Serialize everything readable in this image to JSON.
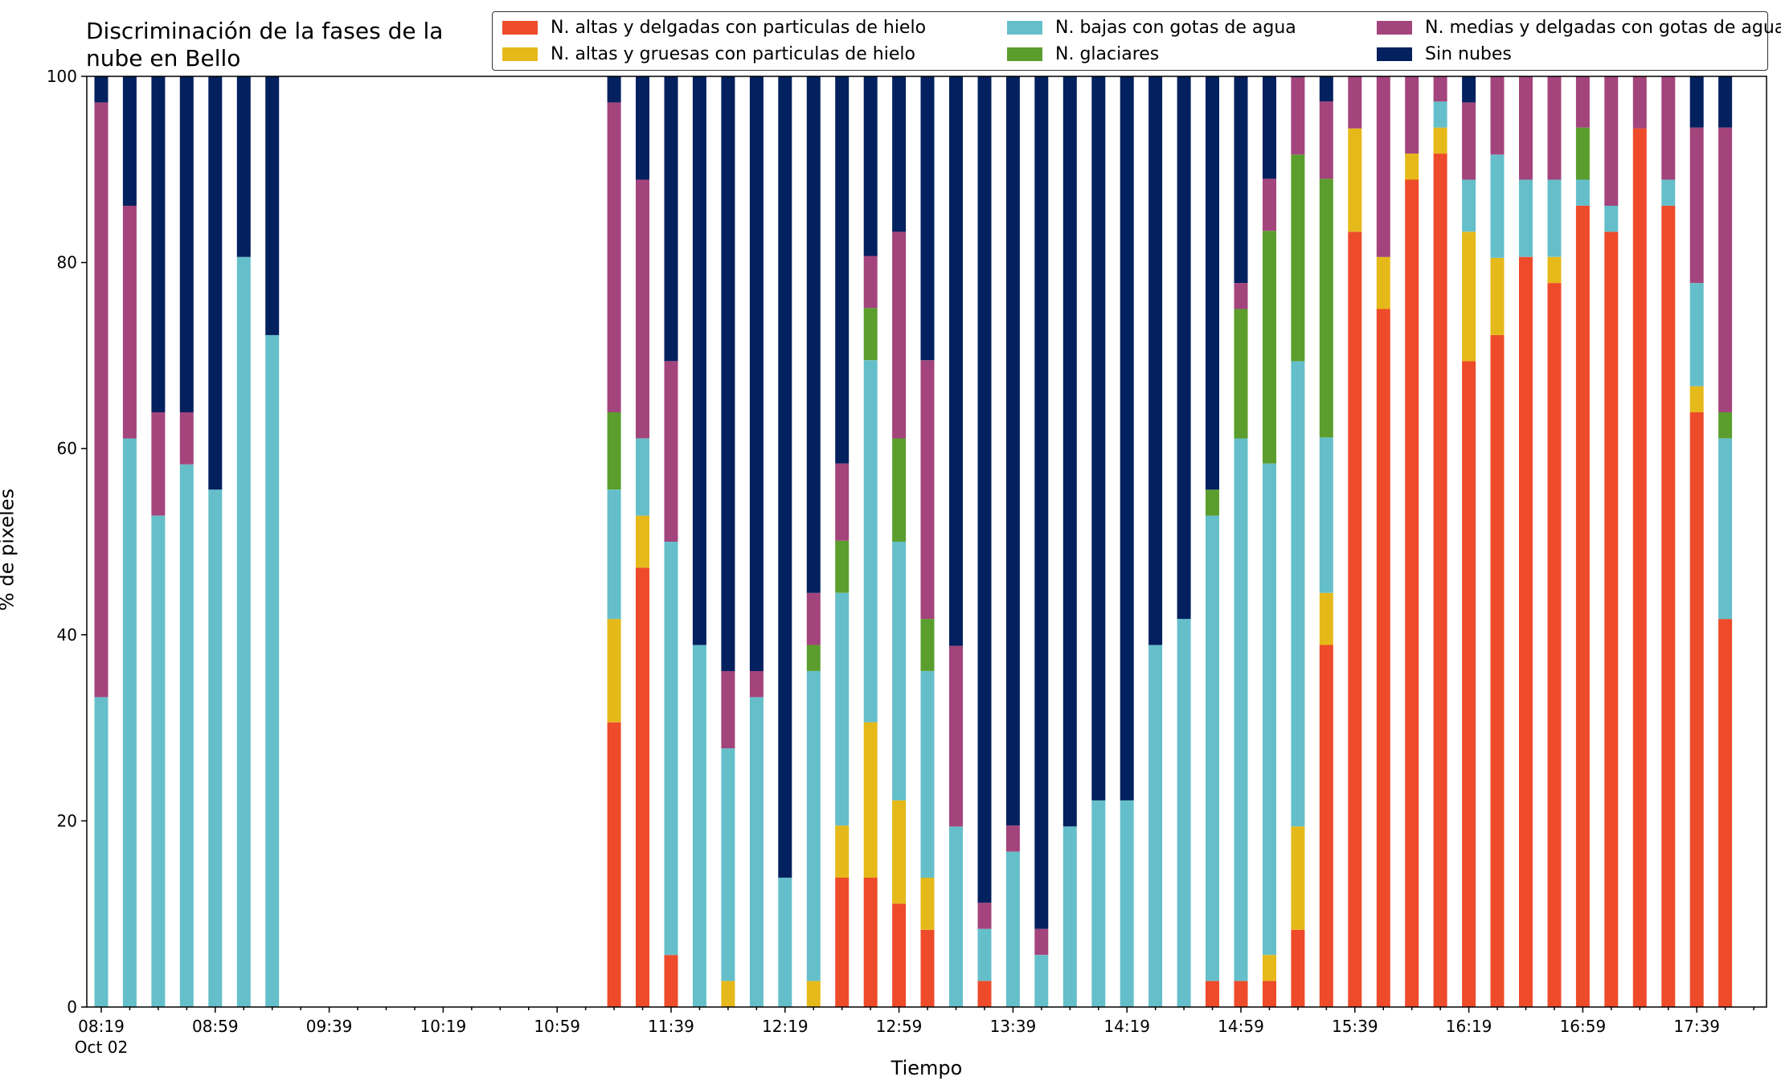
{
  "chart_data": {
    "type": "bar",
    "stacked": true,
    "title": "Discriminación de la fases de la\nnube en Bello",
    "xlabel": "Tiempo",
    "ylabel": "% de pixeles",
    "ylim": [
      0,
      100
    ],
    "yticks": [
      "0",
      "20",
      "40",
      "60",
      "80",
      "100"
    ],
    "xtick_labels": [
      {
        "label": "08:19",
        "sub": "Oct 02",
        "minute": 0
      },
      {
        "label": "08:59",
        "minute": 40
      },
      {
        "label": "09:39",
        "minute": 80
      },
      {
        "label": "10:19",
        "minute": 120
      },
      {
        "label": "10:59",
        "minute": 160
      },
      {
        "label": "11:39",
        "minute": 200
      },
      {
        "label": "12:19",
        "minute": 240
      },
      {
        "label": "12:59",
        "minute": 280
      },
      {
        "label": "13:39",
        "minute": 320
      },
      {
        "label": "14:19",
        "minute": 360
      },
      {
        "label": "14:59",
        "minute": 400
      },
      {
        "label": "15:39",
        "minute": 440
      },
      {
        "label": "16:19",
        "minute": 480
      },
      {
        "label": "16:59",
        "minute": 520
      },
      {
        "label": "17:39",
        "minute": 560
      }
    ],
    "x_interval_minutes": 10,
    "legend_location": "top-right",
    "series": [
      {
        "name": "N. altas y delgadas con particulas de hielo",
        "color": "#ee4b2b"
      },
      {
        "name": "N. altas y gruesas con particulas de hielo",
        "color": "#e6b91a"
      },
      {
        "name": "N. bajas con gotas de agua",
        "color": "#65bfca"
      },
      {
        "name": "N. glaciares",
        "color": "#5b9e2e"
      },
      {
        "name": "N. medias y delgadas con gotas de agua",
        "color": "#a4447c"
      },
      {
        "name": "Sin nubes",
        "color": "#03205f"
      }
    ],
    "bars": [
      {
        "minute": 0,
        "values": [
          0,
          0,
          33.3,
          0,
          63.9,
          2.8
        ]
      },
      {
        "minute": 10,
        "values": [
          0,
          0,
          61.1,
          0,
          25.0,
          13.9
        ]
      },
      {
        "minute": 20,
        "values": [
          0,
          0,
          52.8,
          0,
          11.1,
          36.1
        ]
      },
      {
        "minute": 30,
        "values": [
          0,
          0,
          58.3,
          0,
          5.6,
          36.1
        ]
      },
      {
        "minute": 40,
        "values": [
          0,
          0,
          55.6,
          0,
          0,
          44.4
        ]
      },
      {
        "minute": 50,
        "values": [
          0,
          0,
          80.6,
          0,
          0,
          19.4
        ]
      },
      {
        "minute": 60,
        "values": [
          0,
          0,
          72.2,
          0,
          0,
          27.8
        ]
      },
      {
        "minute": 180,
        "values": [
          30.6,
          11.1,
          13.9,
          8.3,
          33.3,
          2.8
        ]
      },
      {
        "minute": 190,
        "values": [
          47.2,
          5.6,
          8.3,
          0,
          27.8,
          11.1
        ]
      },
      {
        "minute": 200,
        "values": [
          5.6,
          0,
          44.4,
          0,
          19.4,
          30.6
        ]
      },
      {
        "minute": 210,
        "values": [
          0,
          0,
          38.9,
          0,
          0,
          61.1
        ]
      },
      {
        "minute": 220,
        "values": [
          0,
          2.8,
          25.0,
          0,
          8.3,
          63.9
        ]
      },
      {
        "minute": 230,
        "values": [
          0,
          0,
          33.3,
          0,
          2.8,
          63.9
        ]
      },
      {
        "minute": 240,
        "values": [
          0,
          0,
          13.9,
          0,
          0,
          86.1
        ]
      },
      {
        "minute": 250,
        "values": [
          0,
          2.8,
          33.3,
          2.8,
          5.6,
          55.5
        ]
      },
      {
        "minute": 260,
        "values": [
          13.9,
          5.6,
          25.0,
          5.6,
          8.3,
          41.6
        ]
      },
      {
        "minute": 270,
        "values": [
          13.9,
          16.7,
          38.9,
          5.6,
          5.6,
          19.3
        ]
      },
      {
        "minute": 280,
        "values": [
          11.1,
          11.1,
          27.8,
          11.1,
          22.2,
          16.7
        ]
      },
      {
        "minute": 290,
        "values": [
          8.3,
          5.6,
          22.2,
          5.6,
          27.8,
          30.5
        ]
      },
      {
        "minute": 300,
        "values": [
          0,
          0,
          19.4,
          0,
          19.4,
          61.2
        ]
      },
      {
        "minute": 310,
        "values": [
          2.8,
          0,
          5.6,
          0,
          2.8,
          88.8
        ]
      },
      {
        "minute": 320,
        "values": [
          0,
          0,
          16.7,
          0,
          2.8,
          80.5
        ]
      },
      {
        "minute": 330,
        "values": [
          0,
          0,
          5.6,
          0,
          2.8,
          91.6
        ]
      },
      {
        "minute": 340,
        "values": [
          0,
          0,
          19.4,
          0,
          0,
          80.6
        ]
      },
      {
        "minute": 350,
        "values": [
          0,
          0,
          22.2,
          0,
          0,
          77.8
        ]
      },
      {
        "minute": 360,
        "values": [
          0,
          0,
          22.2,
          0,
          0,
          77.8
        ]
      },
      {
        "minute": 370,
        "values": [
          0,
          0,
          38.9,
          0,
          0,
          61.1
        ]
      },
      {
        "minute": 380,
        "values": [
          0,
          0,
          41.7,
          0,
          0,
          58.3
        ]
      },
      {
        "minute": 390,
        "values": [
          2.8,
          0,
          50.0,
          2.8,
          0,
          44.4
        ]
      },
      {
        "minute": 400,
        "values": [
          2.8,
          0,
          58.3,
          13.9,
          2.8,
          22.2
        ]
      },
      {
        "minute": 410,
        "values": [
          2.8,
          2.8,
          52.8,
          25.0,
          5.6,
          11.0
        ]
      },
      {
        "minute": 420,
        "values": [
          8.3,
          11.1,
          50.0,
          22.2,
          8.3,
          0.1
        ]
      },
      {
        "minute": 430,
        "values": [
          38.9,
          5.6,
          16.7,
          27.8,
          8.3,
          2.7
        ]
      },
      {
        "minute": 440,
        "values": [
          83.3,
          11.1,
          0,
          0,
          5.6,
          0
        ]
      },
      {
        "minute": 450,
        "values": [
          75.0,
          5.6,
          0,
          0,
          19.4,
          0
        ]
      },
      {
        "minute": 460,
        "values": [
          88.9,
          2.8,
          0,
          0,
          8.3,
          0
        ]
      },
      {
        "minute": 470,
        "values": [
          91.7,
          2.8,
          2.8,
          0,
          2.7,
          0
        ]
      },
      {
        "minute": 480,
        "values": [
          69.4,
          13.9,
          5.6,
          0,
          8.3,
          2.8
        ]
      },
      {
        "minute": 490,
        "values": [
          72.2,
          8.3,
          11.1,
          0,
          8.4,
          0
        ]
      },
      {
        "minute": 500,
        "values": [
          80.6,
          0,
          8.3,
          0,
          11.1,
          0
        ]
      },
      {
        "minute": 510,
        "values": [
          77.8,
          2.8,
          8.3,
          0,
          11.1,
          0
        ]
      },
      {
        "minute": 520,
        "values": [
          86.1,
          0,
          2.8,
          5.6,
          5.5,
          0
        ]
      },
      {
        "minute": 530,
        "values": [
          83.3,
          0,
          2.8,
          0,
          13.9,
          0
        ]
      },
      {
        "minute": 540,
        "values": [
          94.4,
          0,
          0,
          0,
          5.6,
          0
        ]
      },
      {
        "minute": 550,
        "values": [
          86.1,
          0,
          2.8,
          0,
          11.1,
          0
        ]
      },
      {
        "minute": 560,
        "values": [
          63.9,
          2.8,
          11.1,
          0,
          16.7,
          5.5
        ]
      },
      {
        "minute": 570,
        "values": [
          41.7,
          0,
          19.4,
          2.8,
          30.6,
          5.5
        ]
      }
    ]
  }
}
